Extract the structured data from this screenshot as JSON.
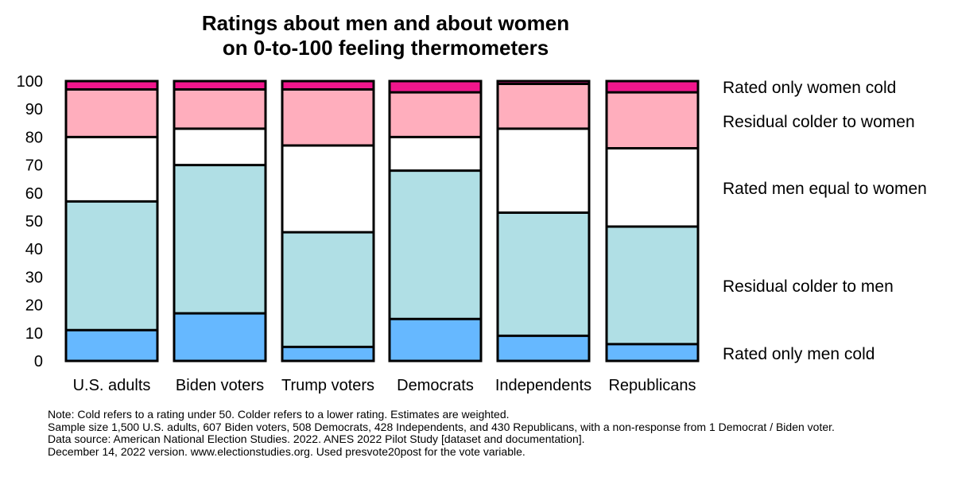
{
  "chart_data": {
    "type": "bar",
    "stacked": true,
    "title_lines": [
      "Ratings about men and about women",
      "on 0-to-100 feeling thermometers"
    ],
    "categories": [
      "U.S. adults",
      "Biden voters",
      "Trump voters",
      "Democrats",
      "Independents",
      "Republicans"
    ],
    "yticks": [
      0,
      10,
      20,
      30,
      40,
      50,
      60,
      70,
      80,
      90,
      100
    ],
    "ylim": [
      0,
      100
    ],
    "series": [
      {
        "name": "Rated only men cold",
        "color": "#66b8ff",
        "values": [
          11,
          17,
          5,
          15,
          9,
          6
        ]
      },
      {
        "name": "Residual colder to men",
        "color": "#b0dfe5",
        "values": [
          46,
          53,
          41,
          53,
          44,
          42
        ]
      },
      {
        "name": "Rated men equal to women",
        "color": "#ffffff",
        "values": [
          23,
          13,
          31,
          12,
          30,
          28
        ]
      },
      {
        "name": "Residual colder to women",
        "color": "#ffaebd",
        "values": [
          17,
          14,
          20,
          16,
          16,
          20
        ]
      },
      {
        "name": "Rated only women cold",
        "color": "#f0168c",
        "values": [
          3,
          3,
          3,
          4,
          1,
          4
        ]
      }
    ],
    "legend_placement": "right"
  },
  "notes": [
    "Note: Cold refers to a rating under 50. Colder refers to a lower rating. Estimates are weighted.",
    "Sample size 1,500 U.S. adults, 607 Biden voters, 508 Democrats, 428 Independents, and 430 Republicans, with a non-response from 1 Democrat / Biden voter.",
    "Data source: American National Election Studies. 2022. ANES 2022 Pilot Study [dataset and documentation].",
    "December 14, 2022 version. www.electionstudies.org. Used presvote20post for the vote variable."
  ]
}
